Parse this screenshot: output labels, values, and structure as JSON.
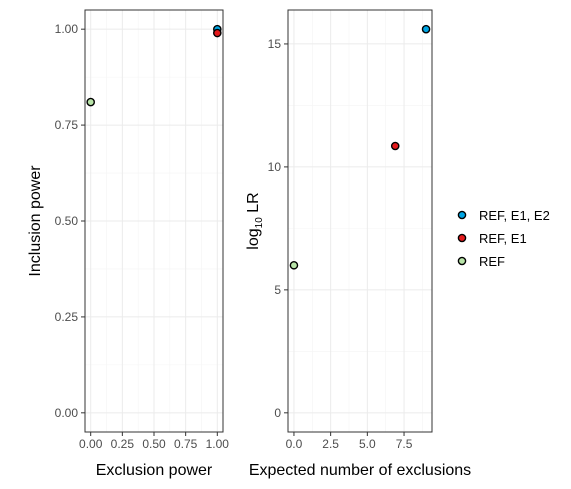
{
  "chart_data": [
    {
      "type": "scatter",
      "xlabel": "Exclusion power",
      "ylabel": "Inclusion power",
      "xlim": [
        0,
        1
      ],
      "ylim": [
        0,
        1
      ],
      "xticks": [
        0,
        0.25,
        0.5,
        0.75,
        1.0
      ],
      "xtick_labels": [
        "0.00",
        "0.25",
        "0.50",
        "0.75",
        "1.00"
      ],
      "yticks": [
        0,
        0.25,
        0.5,
        0.75,
        1.0
      ],
      "ytick_labels": [
        "0.00",
        "0.25",
        "0.50",
        "0.75",
        "1.00"
      ],
      "grid": true,
      "series": [
        {
          "name": "REF, E1, E2",
          "x": [
            1.0
          ],
          "y": [
            1.0
          ]
        },
        {
          "name": "REF, E1",
          "x": [
            1.0
          ],
          "y": [
            0.99
          ]
        },
        {
          "name": "REF",
          "x": [
            0.0
          ],
          "y": [
            0.81
          ]
        }
      ]
    },
    {
      "type": "scatter",
      "xlabel": "Expected number of exclusions",
      "ylabel_main": "log",
      "ylabel_sub": "10",
      "ylabel_rest": " LR",
      "xlim": [
        0,
        9
      ],
      "ylim": [
        0,
        15.6
      ],
      "xticks": [
        0,
        2.5,
        5,
        7.5
      ],
      "xtick_labels": [
        "0.0",
        "2.5",
        "5.0",
        "7.5"
      ],
      "yticks": [
        0,
        5,
        10,
        15
      ],
      "ytick_labels": [
        "0",
        "5",
        "10",
        "15"
      ],
      "grid": true,
      "series": [
        {
          "name": "REF, E1, E2",
          "x": [
            9.0
          ],
          "y": [
            15.6
          ]
        },
        {
          "name": "REF, E1",
          "x": [
            6.9
          ],
          "y": [
            10.85
          ]
        },
        {
          "name": "REF",
          "x": [
            0.0
          ],
          "y": [
            6.0
          ]
        }
      ]
    }
  ],
  "legend": {
    "placement": "right",
    "items": [
      {
        "label": "REF, E1, E2",
        "color": "#00A5E3"
      },
      {
        "label": "REF, E1",
        "color": "#E41A1C"
      },
      {
        "label": "REF",
        "color": "#B8E4A8"
      }
    ]
  }
}
